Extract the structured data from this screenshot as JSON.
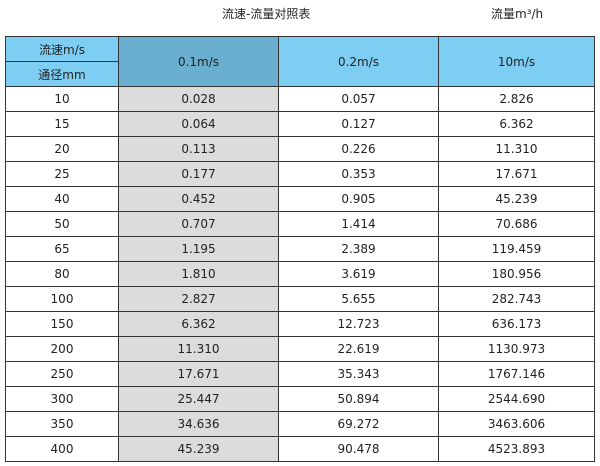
{
  "title": "流速-流量对照表",
  "unit_label": "流量m³/h",
  "header": {
    "velocity_label": "流速m/s",
    "diameter_label": "通径mm",
    "columns": [
      "0.1m/s",
      "0.2m/s",
      "10m/s"
    ]
  },
  "colors": {
    "header": "#7ecef4",
    "header_selected": "#6aafd0",
    "highlight_column": "#dcdcdc"
  },
  "rows": [
    [
      "10",
      "0.028",
      "0.057",
      "2.826"
    ],
    [
      "15",
      "0.064",
      "0.127",
      "6.362"
    ],
    [
      "20",
      "0.113",
      "0.226",
      "11.310"
    ],
    [
      "25",
      "0.177",
      "0.353",
      "17.671"
    ],
    [
      "40",
      "0.452",
      "0.905",
      "45.239"
    ],
    [
      "50",
      "0.707",
      "1.414",
      "70.686"
    ],
    [
      "65",
      "1.195",
      "2.389",
      "119.459"
    ],
    [
      "80",
      "1.810",
      "3.619",
      "180.956"
    ],
    [
      "100",
      "2.827",
      "5.655",
      "282.743"
    ],
    [
      "150",
      "6.362",
      "12.723",
      "636.173"
    ],
    [
      "200",
      "11.310",
      "22.619",
      "1130.973"
    ],
    [
      "250",
      "17.671",
      "35.343",
      "1767.146"
    ],
    [
      "300",
      "25.447",
      "50.894",
      "2544.690"
    ],
    [
      "350",
      "34.636",
      "69.272",
      "3463.606"
    ],
    [
      "400",
      "45.239",
      "90.478",
      "4523.893"
    ]
  ]
}
